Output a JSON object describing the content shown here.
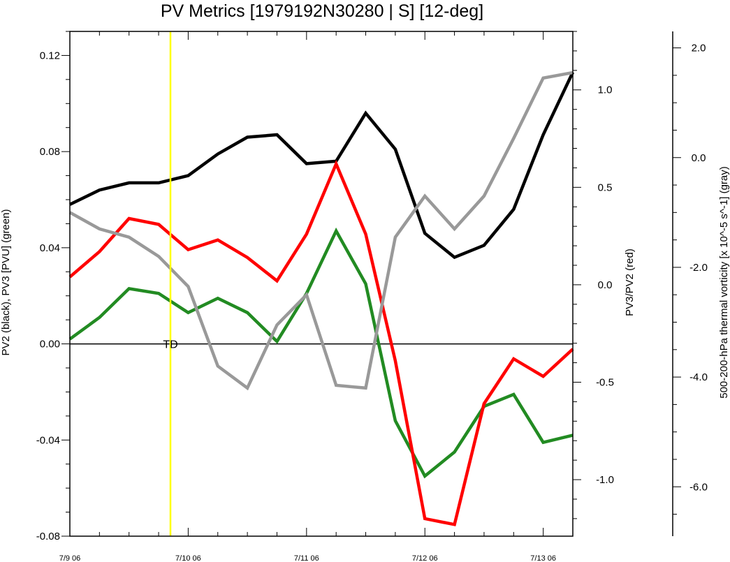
{
  "chart_data": {
    "type": "line",
    "title": "PV Metrics [1979192N30280 | S] [12-deg]",
    "x": [
      0,
      0.25,
      0.5,
      0.75,
      1,
      1.25,
      1.5,
      1.75,
      2,
      2.25,
      2.5,
      2.75,
      3,
      3.25,
      3.5,
      3.75,
      4,
      4.25
    ],
    "xlim": [
      0,
      4.25
    ],
    "x_ticks": [
      {
        "value": 0,
        "label": "7/9 06"
      },
      {
        "value": 1,
        "label": "7/10 06"
      },
      {
        "value": 2,
        "label": "7/11 06"
      },
      {
        "value": 3,
        "label": "7/12 06"
      },
      {
        "value": 4,
        "label": "7/13 06"
      }
    ],
    "axes": {
      "left": {
        "label": "PV2 (black), PV3 [PVU] (green)",
        "ylim": [
          -0.08,
          0.13
        ],
        "ticks": [
          {
            "value": 0.12,
            "label": "0.12"
          },
          {
            "value": 0.08,
            "label": "0.08"
          },
          {
            "value": 0.04,
            "label": "0.04"
          },
          {
            "value": 0.0,
            "label": "0.00"
          },
          {
            "value": -0.04,
            "label": "-0.04"
          },
          {
            "value": -0.08,
            "label": "-0.08"
          }
        ]
      },
      "right": {
        "label": "PV3/PV2 (red)",
        "ylim": [
          -1.29,
          1.3
        ],
        "ticks": [
          {
            "value": 1.0,
            "label": "1.0"
          },
          {
            "value": 0.5,
            "label": "0.5"
          },
          {
            "value": 0.0,
            "label": "0.0"
          },
          {
            "value": -0.5,
            "label": "-0.5"
          },
          {
            "value": -1.0,
            "label": "-1.0"
          }
        ]
      },
      "far_right": {
        "label": "500-200-hPa thermal vorticity [x 10^-5 s^-1] (gray)",
        "ylim": [
          -6.9,
          2.3
        ],
        "ticks": [
          {
            "value": 2.0,
            "label": "2.0"
          },
          {
            "value": 0.0,
            "label": "0.0"
          },
          {
            "value": -2.0,
            "label": "-2.0"
          },
          {
            "value": -4.0,
            "label": "-4.0"
          },
          {
            "value": -6.0,
            "label": "-6.0"
          }
        ]
      }
    },
    "series": [
      {
        "name": "PV2",
        "axis": "left",
        "color": "#000000",
        "values": [
          0.058,
          0.064,
          0.067,
          0.067,
          0.07,
          0.079,
          0.086,
          0.087,
          0.075,
          0.076,
          0.096,
          0.081,
          0.046,
          0.036,
          0.041,
          0.056,
          0.087,
          0.113
        ]
      },
      {
        "name": "PV3",
        "axis": "left",
        "color": "#228b22",
        "values": [
          0.002,
          0.011,
          0.023,
          0.021,
          0.013,
          0.019,
          0.013,
          0.001,
          0.021,
          0.047,
          0.025,
          -0.032,
          -0.055,
          -0.045,
          -0.026,
          -0.021,
          -0.041,
          -0.038
        ]
      },
      {
        "name": "PV3/PV2",
        "axis": "right",
        "color": "#ff0000",
        "values": [
          0.04,
          0.17,
          0.34,
          0.31,
          0.18,
          0.23,
          0.14,
          0.02,
          0.26,
          0.62,
          0.26,
          -0.39,
          -1.2,
          -1.23,
          -0.61,
          -0.38,
          -0.47,
          -0.33
        ]
      },
      {
        "name": "thermal vorticity",
        "axis": "far_right",
        "color": "#999999",
        "values": [
          -1.0,
          -1.3,
          -1.45,
          -1.8,
          -2.35,
          -3.8,
          -4.2,
          -3.05,
          -2.5,
          -4.15,
          -4.2,
          -1.45,
          -0.7,
          -1.3,
          -0.7,
          0.35,
          1.45,
          1.55
        ]
      }
    ],
    "markers": [
      {
        "x": 0.85,
        "color": "#ffff00",
        "label": "TD"
      }
    ],
    "zero_line": 0.0
  }
}
